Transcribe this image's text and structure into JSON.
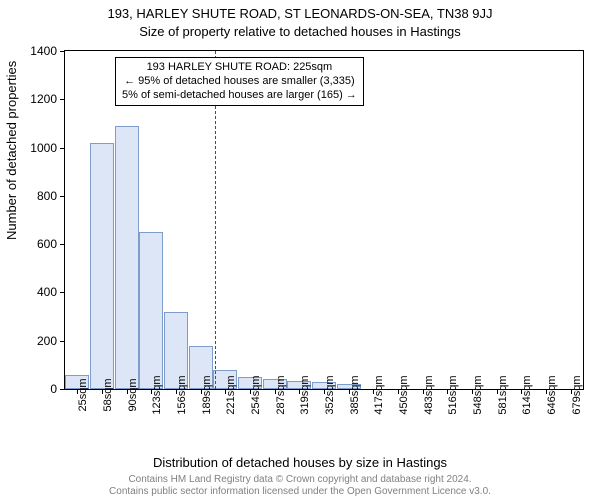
{
  "title_main": "193, HARLEY SHUTE ROAD, ST LEONARDS-ON-SEA, TN38 9JJ",
  "title_sub": "Size of property relative to detached houses in Hastings",
  "y_axis_label": "Number of detached properties",
  "x_axis_label": "Distribution of detached houses by size in Hastings",
  "footer_line1": "Contains HM Land Registry data © Crown copyright and database right 2024.",
  "footer_line2": "Contains public sector information licensed under the Open Government Licence v3.0.",
  "chart": {
    "type": "histogram",
    "ylim": [
      0,
      1400
    ],
    "yticks": [
      0,
      200,
      400,
      600,
      800,
      1000,
      1200,
      1400
    ],
    "categories": [
      "25sqm",
      "58sqm",
      "90sqm",
      "123sqm",
      "156sqm",
      "189sqm",
      "221sqm",
      "254sqm",
      "287sqm",
      "319sqm",
      "352sqm",
      "385sqm",
      "417sqm",
      "450sqm",
      "483sqm",
      "516sqm",
      "548sqm",
      "581sqm",
      "614sqm",
      "646sqm",
      "679sqm"
    ],
    "values": [
      60,
      1020,
      1090,
      650,
      320,
      180,
      80,
      50,
      40,
      35,
      30,
      20,
      0,
      0,
      0,
      0,
      0,
      0,
      0,
      0,
      0
    ],
    "bar_fill": "#dce6f6",
    "bar_stroke": "#7f9dcb",
    "background_color": "#ffffff",
    "axis_color": "#000000",
    "reference_line": {
      "x_category_index": 6,
      "color": "#ff0000"
    },
    "tick_fontsize": 11,
    "label_fontsize": 13,
    "title_fontsize": 13
  },
  "annotation": {
    "line1": "193 HARLEY SHUTE ROAD: 225sqm",
    "line2": "← 95% of detached houses are smaller (3,335)",
    "line3": "5% of semi-detached houses are larger (165) →",
    "border_color": "#000000",
    "background_color": "#ffffff",
    "fontsize": 11
  }
}
